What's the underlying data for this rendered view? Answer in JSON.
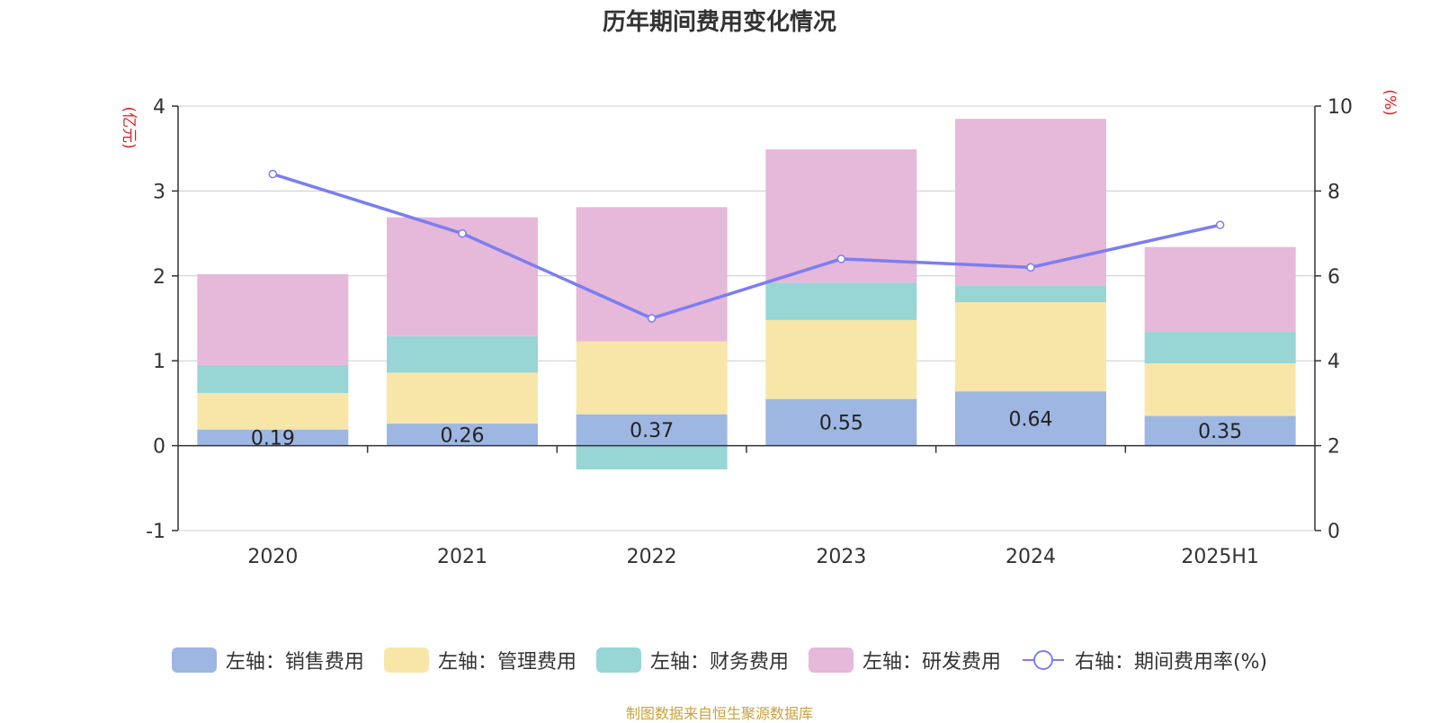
{
  "title": "历年期间费用变化情况",
  "source": "制图数据来自恒生聚源数据库",
  "legend": [
    {
      "label": "左轴：销售费用",
      "color": "#9db7e2",
      "kind": "box"
    },
    {
      "label": "左轴：管理费用",
      "color": "#f7e6a8",
      "kind": "box"
    },
    {
      "label": "左轴：财务费用",
      "color": "#98d5d5",
      "kind": "box"
    },
    {
      "label": "左轴：研发费用",
      "color": "#e6b8d9",
      "kind": "box"
    },
    {
      "label": "右轴：期间费用率(%)",
      "color": "#7b7ef0",
      "kind": "line"
    }
  ],
  "chart_data": {
    "type": "bar",
    "stacked": true,
    "categories": [
      "2020",
      "2021",
      "2022",
      "2023",
      "2024",
      "2025H1"
    ],
    "series": [
      {
        "name": "左轴：销售费用",
        "axis": "left",
        "color": "#9db7e2",
        "values": [
          0.19,
          0.26,
          0.37,
          0.55,
          0.64,
          0.35
        ],
        "labels": [
          "0.19",
          "0.26",
          "0.37",
          "0.55",
          "0.64",
          "0.35"
        ]
      },
      {
        "name": "左轴：管理费用",
        "axis": "left",
        "color": "#f7e6a8",
        "values": [
          0.43,
          0.6,
          0.86,
          0.93,
          1.05,
          0.62
        ]
      },
      {
        "name": "左轴：财务费用",
        "axis": "left",
        "color": "#98d5d5",
        "values": [
          0.33,
          0.43,
          -0.28,
          0.44,
          0.2,
          0.37
        ]
      },
      {
        "name": "左轴：研发费用",
        "axis": "left",
        "color": "#e6b8d9",
        "values": [
          1.07,
          1.4,
          1.58,
          1.57,
          1.96,
          1.0
        ]
      },
      {
        "name": "右轴：期间费用率(%)",
        "axis": "right",
        "type": "line",
        "color": "#7b7ef0",
        "values": [
          8.4,
          7.0,
          5.0,
          6.4,
          6.2,
          7.2
        ]
      }
    ],
    "left_axis": {
      "label": "(亿元)",
      "min": -1,
      "max": 4,
      "ticks": [
        -1,
        0,
        1,
        2,
        3,
        4
      ]
    },
    "right_axis": {
      "label": "(%)",
      "min": 0,
      "max": 10,
      "ticks": [
        0,
        2,
        4,
        6,
        8,
        10
      ]
    },
    "grid": true,
    "legend_position": "bottom"
  }
}
